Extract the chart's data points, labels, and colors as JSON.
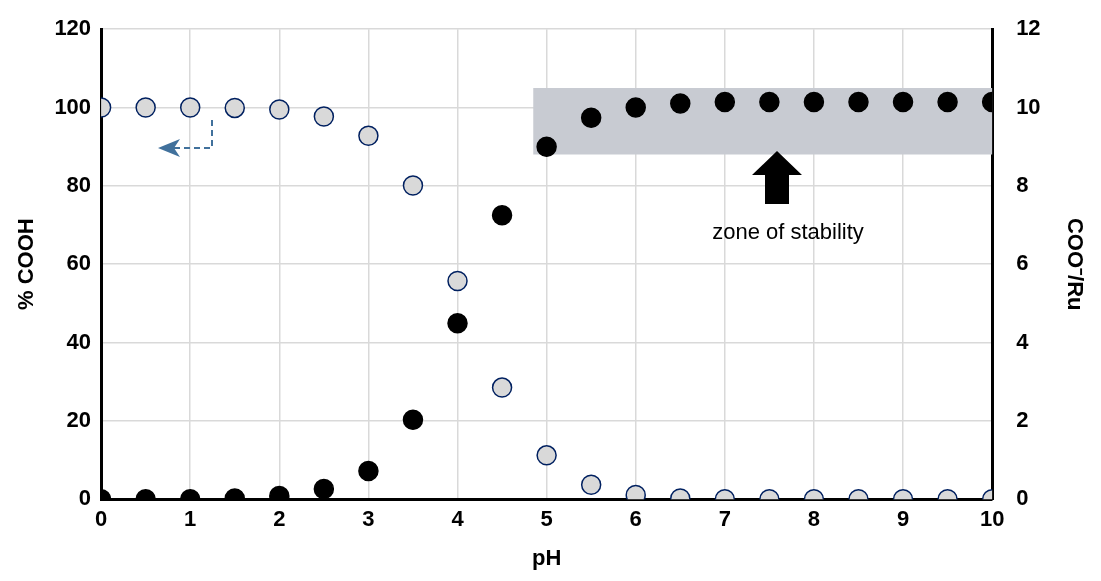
{
  "chart_data": {
    "type": "scatter",
    "xlabel": "pH",
    "ylabel": "% COOH",
    "y2label": "COO⁻/Ru",
    "x": [
      0,
      0.5,
      1,
      1.5,
      2,
      2.5,
      3,
      3.5,
      4,
      4.5,
      5,
      5.5,
      6,
      6.5,
      7,
      7.5,
      8,
      8.5,
      9,
      9.5,
      10
    ],
    "series": [
      {
        "color": "#d9d9d9",
        "values": [
          100,
          100,
          100,
          99.9,
          99.5,
          97.7,
          92.8,
          80.1,
          55.7,
          28.5,
          11.2,
          3.7,
          1.1,
          0.2,
          0,
          0,
          0,
          0,
          0,
          0,
          0
        ]
      },
      {
        "color": "#000000",
        "axis": "y2",
        "values": [
          0,
          0,
          0,
          0.02,
          0.08,
          0.26,
          0.72,
          2.03,
          4.49,
          7.25,
          9.0,
          9.74,
          10.0,
          10.1,
          10.14,
          10.14,
          10.14,
          10.14,
          10.14,
          10.14,
          10.14
        ]
      }
    ],
    "xlim": [
      0,
      10
    ],
    "xticks": [
      0,
      1,
      2,
      3,
      4,
      5,
      6,
      7,
      8,
      9,
      10
    ],
    "ylim": [
      0,
      120
    ],
    "yticks": [
      0,
      20,
      40,
      60,
      80,
      100,
      120
    ],
    "y2lim": [
      0,
      12
    ],
    "y2ticks": [
      0,
      2,
      4,
      6,
      8,
      10,
      12
    ],
    "bands": [
      {
        "axis": "y2",
        "from": 8.8,
        "to": 10.5,
        "label": "zone of stability",
        "color": "#c8cbd2"
      }
    ],
    "grid": true,
    "legend": false,
    "marker": "circle"
  }
}
